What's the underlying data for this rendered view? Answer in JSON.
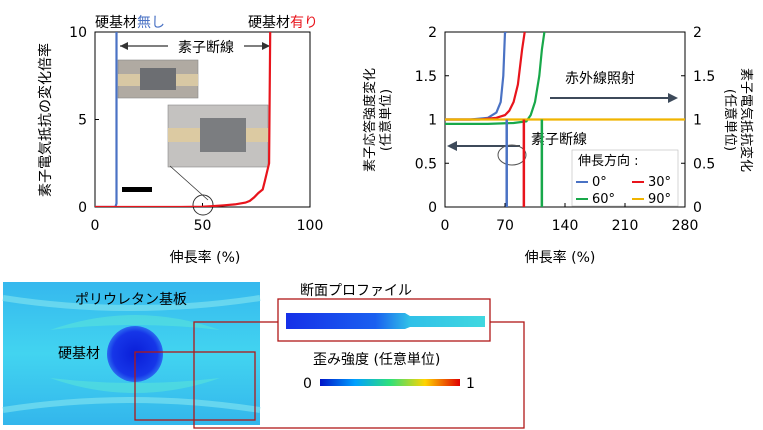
{
  "left_panel": {
    "label_no_hard": "硬基材",
    "label_no_hard_suffix": "無し",
    "label_with_hard": "硬基材",
    "label_with_hard_suffix": "有り",
    "break_label": "素子断線",
    "ylabel": "素子電気抵抗の変化倍率",
    "xlabel": "伸長率 (%)",
    "colors": {
      "blue": "#4a72c4",
      "red": "#e8141c"
    }
  },
  "right_panel": {
    "ylabel_left_1": "素子応答強度変化",
    "ylabel_left_2": "(任意単位)",
    "ylabel_right_1": "素子電気抵抗変化",
    "ylabel_right_2": "(任意単位)",
    "ir_label": "赤外線照射",
    "break_label": "素子断線",
    "xlabel": "伸長率 (%)",
    "legend_title": "伸長方向 :",
    "colors": {
      "0": "#4a72c4",
      "30": "#e8141c",
      "60": "#18a84a",
      "90": "#f0b400"
    }
  },
  "bottom_panel": {
    "substrate_label": "ポリウレタン基板",
    "hard_label": "硬基材",
    "profile_title": "断面プロファイル",
    "strain_title": "歪み強度 (任意単位)",
    "scale_min": "0",
    "scale_max": "1"
  },
  "chart_data": [
    {
      "type": "line",
      "xlabel": "伸長率 (%)",
      "ylabel": "素子電気抵抗の変化倍率",
      "xlim": [
        0,
        100
      ],
      "ylim": [
        0,
        10
      ],
      "xticks": [
        "0",
        "50",
        "100"
      ],
      "yticks": [
        "0",
        "5",
        "10"
      ],
      "annotations": [
        "硬基材無し",
        "硬基材有り",
        "素子断線"
      ],
      "series": [
        {
          "name": "硬基材無し",
          "color": "#4a72c4",
          "x": [
            0,
            9.5,
            10,
            10
          ],
          "y": [
            0,
            0,
            0.2,
            10
          ]
        },
        {
          "name": "硬基材有り",
          "color": "#e8141c",
          "x": [
            0,
            40,
            50,
            55,
            60,
            65,
            70,
            72,
            74,
            76,
            78,
            79,
            80,
            81,
            81.5
          ],
          "y": [
            0,
            0,
            0.02,
            0.05,
            0.1,
            0.15,
            0.25,
            0.35,
            0.55,
            0.8,
            1.0,
            1.5,
            2.0,
            2.5,
            10
          ]
        }
      ]
    },
    {
      "type": "line",
      "xlabel": "伸長率 (%)",
      "ylabel": "素子応答強度変化 (任意単位)",
      "y2label": "素子電気抵抗変化 (任意単位)",
      "xlim": [
        0,
        280
      ],
      "ylim": [
        0,
        2
      ],
      "xticks": [
        "0",
        "70",
        "140",
        "210",
        "280"
      ],
      "yticks": [
        "0",
        "0.5",
        "1",
        "1.5",
        "2"
      ],
      "y2ticks": [
        "0",
        "0.5",
        "1",
        "1.5",
        "2"
      ],
      "legend_title": "伸長方向 :",
      "annotations": [
        "赤外線照射",
        "素子断線"
      ],
      "series": [
        {
          "name": "0°",
          "color": "#4a72c4",
          "x": [
            0,
            30,
            50,
            60,
            65,
            68,
            70,
            72
          ],
          "y": [
            1.0,
            1.0,
            1.02,
            1.08,
            1.2,
            1.5,
            2.0,
            2.0
          ]
        },
        {
          "name": "30°",
          "color": "#e8141c",
          "x": [
            0,
            40,
            60,
            70,
            75,
            80,
            85,
            90,
            93
          ],
          "y": [
            1.0,
            1.0,
            1.02,
            1.05,
            1.1,
            1.2,
            1.4,
            1.8,
            2.0
          ]
        },
        {
          "name": "60°",
          "color": "#18a84a",
          "x": [
            0,
            50,
            80,
            95,
            100,
            105,
            110,
            113,
            116
          ],
          "y": [
            0.95,
            0.95,
            0.96,
            0.98,
            1.05,
            1.2,
            1.5,
            1.8,
            2.0
          ]
        },
        {
          "name": "90°",
          "color": "#f0b400",
          "x": [
            0,
            100,
            200,
            280
          ],
          "y": [
            1.0,
            1.0,
            1.0,
            1.0
          ]
        }
      ]
    }
  ]
}
